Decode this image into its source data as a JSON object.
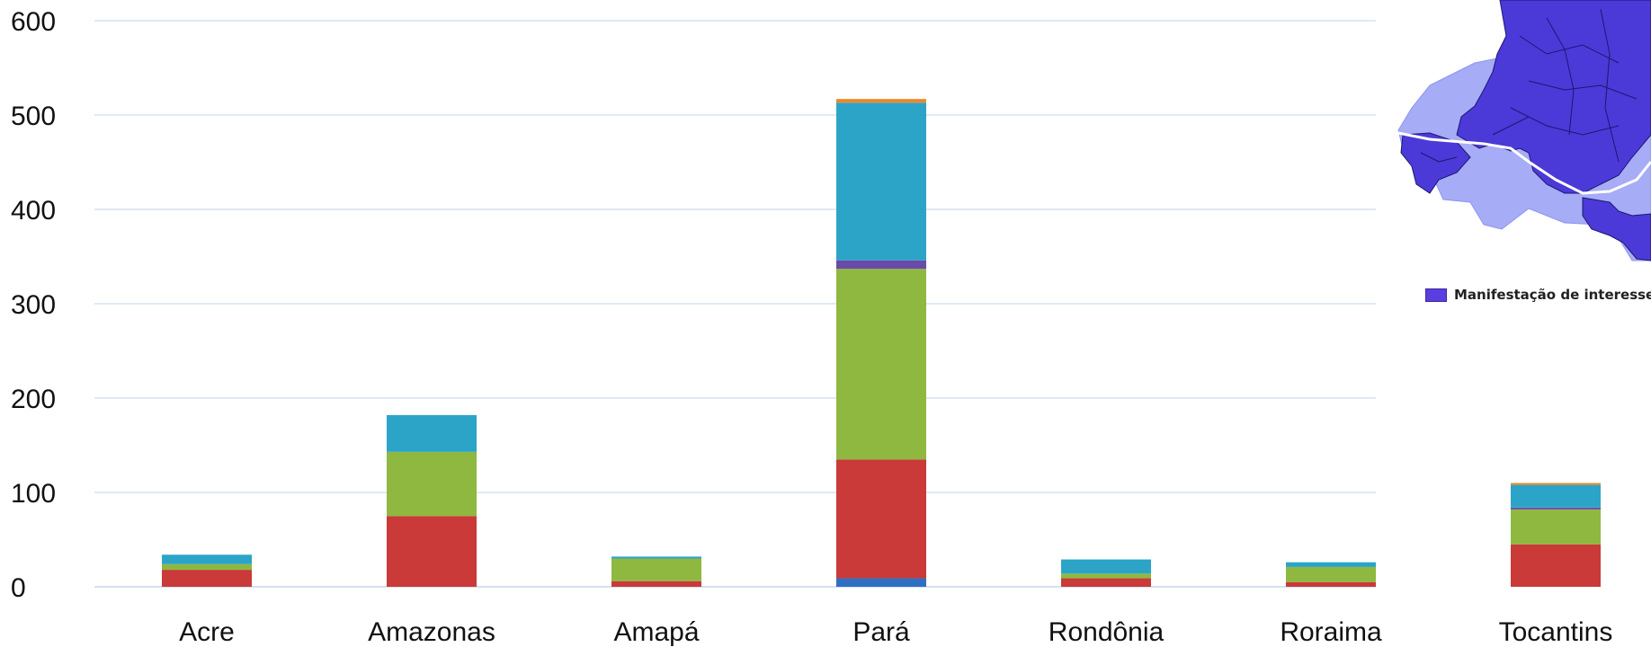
{
  "chart_data": {
    "type": "bar",
    "stacked": true,
    "categories": [
      "Acre",
      "Amazonas",
      "Amapá",
      "Pará",
      "Rondônia",
      "Roraima",
      "Tocantins"
    ],
    "series": [
      {
        "color": "#2e6fc4",
        "values": [
          0,
          0,
          0,
          9,
          0,
          0,
          0
        ]
      },
      {
        "color": "#c93a38",
        "values": [
          18,
          75,
          6,
          126,
          9,
          5,
          45
        ]
      },
      {
        "color": "#8fb840",
        "values": [
          6,
          68,
          24,
          202,
          5,
          16,
          37
        ]
      },
      {
        "color": "#6a4aa8",
        "values": [
          0,
          0,
          0,
          9,
          0,
          0,
          2
        ]
      },
      {
        "color": "#2ca4c8",
        "values": [
          10,
          39,
          2,
          167,
          15,
          5,
          24
        ]
      },
      {
        "color": "#e8892c",
        "values": [
          0,
          0,
          0,
          4,
          0,
          0,
          2
        ]
      }
    ],
    "y_ticks": [
      0,
      100,
      200,
      300,
      400,
      500,
      600
    ],
    "ylim": [
      0,
      600
    ],
    "grid": true,
    "legend": {
      "position": "right",
      "entries": [
        "Manifestação de interesse"
      ],
      "color": "#5a3ee0"
    },
    "inset": "map of the Brazilian Legal Amazon, top-right"
  }
}
